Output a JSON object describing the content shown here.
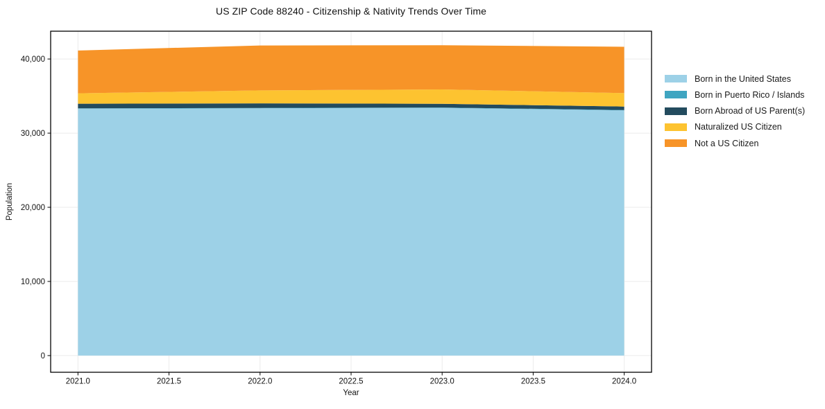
{
  "chart_data": {
    "type": "area",
    "stacked": true,
    "title": "US ZIP Code 88240 - Citizenship & Nativity Trends Over Time",
    "xlabel": "Year",
    "ylabel": "Population",
    "x": [
      2021,
      2022,
      2023,
      2024
    ],
    "series": [
      {
        "name": "Born in the United States",
        "color": "#9dd1e7",
        "values": [
          33300,
          33350,
          33410,
          33070
        ]
      },
      {
        "name": "Born in Puerto Rico / Islands",
        "color": "#3fa5c1",
        "values": [
          40,
          50,
          50,
          50
        ]
      },
      {
        "name": "Born Abroad of US Parent(s)",
        "color": "#234b5e",
        "values": [
          630,
          620,
          500,
          470
        ]
      },
      {
        "name": "Naturalized US Citizen",
        "color": "#fdc330",
        "values": [
          1400,
          1750,
          1940,
          1810
        ]
      },
      {
        "name": "Not a US Citizen",
        "color": "#f79428",
        "values": [
          5770,
          6050,
          5960,
          6250
        ]
      }
    ],
    "xlim": [
      2020.85,
      2024.15
    ],
    "ylim": [
      -2250,
      43750
    ],
    "xticks": [
      {
        "value": 2021.0,
        "label": "2021.0"
      },
      {
        "value": 2021.5,
        "label": "2021.5"
      },
      {
        "value": 2022.0,
        "label": "2022.0"
      },
      {
        "value": 2022.5,
        "label": "2022.5"
      },
      {
        "value": 2023.0,
        "label": "2023.0"
      },
      {
        "value": 2023.5,
        "label": "2023.5"
      },
      {
        "value": 2024.0,
        "label": "2024.0"
      }
    ],
    "yticks": [
      {
        "value": 0,
        "label": "0"
      },
      {
        "value": 10000,
        "label": "10,000"
      },
      {
        "value": 20000,
        "label": "20,000"
      },
      {
        "value": 30000,
        "label": "30,000"
      },
      {
        "value": 40000,
        "label": "40,000"
      }
    ],
    "grid": true,
    "legend_position": "right"
  },
  "colors": {
    "grid": "#ebebeb",
    "frame": "#000000",
    "background": "#ffffff"
  }
}
